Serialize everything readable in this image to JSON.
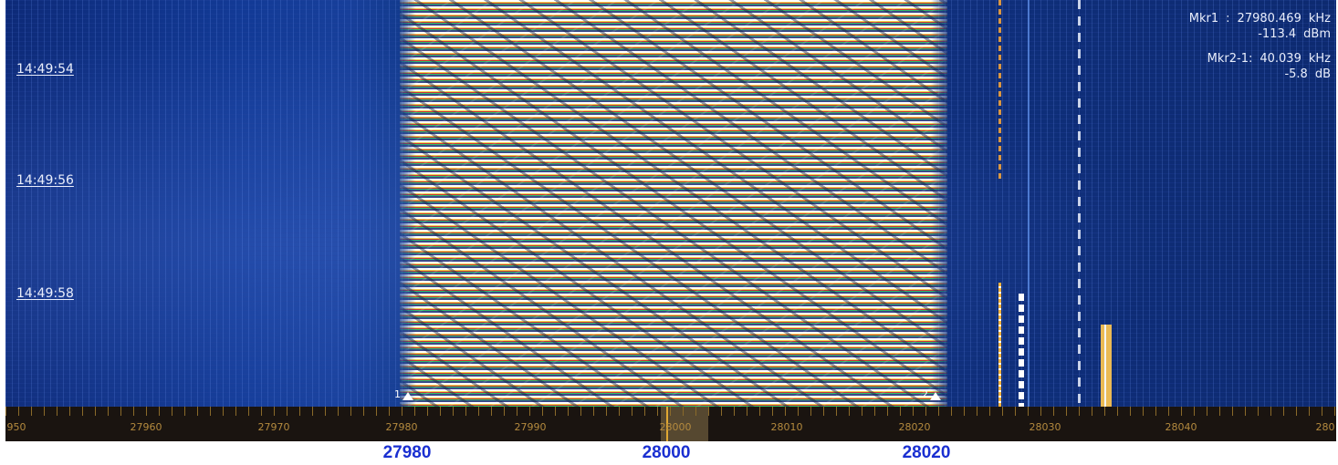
{
  "waterfall": {
    "timestamps": [
      "14:49:54",
      "14:49:56",
      "14:49:58"
    ],
    "markers": [
      {
        "label": "1"
      },
      {
        "label": "2"
      }
    ],
    "readout": {
      "mkr1": {
        "label": "Mkr1",
        "sep": ":",
        "freq_value": "27980.469",
        "freq_unit": "kHz",
        "level_value": "-113.4",
        "level_unit": "dBm"
      },
      "mkr2": {
        "label": "Mkr2-1:",
        "freq_value": "40.039",
        "freq_unit": "kHz",
        "level_value": "-5.8",
        "level_unit": "dB"
      }
    }
  },
  "frequency_axis": {
    "tick_labels": [
      "950",
      "27960",
      "27970",
      "27980",
      "27990",
      "28000",
      "28010",
      "28020",
      "28030",
      "28040",
      "280"
    ]
  },
  "annotations": {
    "labels": [
      "27980",
      "28000",
      "28020"
    ],
    "color": "#1a2fd1"
  },
  "colors": {
    "axis_background": "#1a1410",
    "axis_text": "#b48a3e",
    "waterfall_background": "#0f2f7c",
    "readout_text": "#e9eefc"
  }
}
